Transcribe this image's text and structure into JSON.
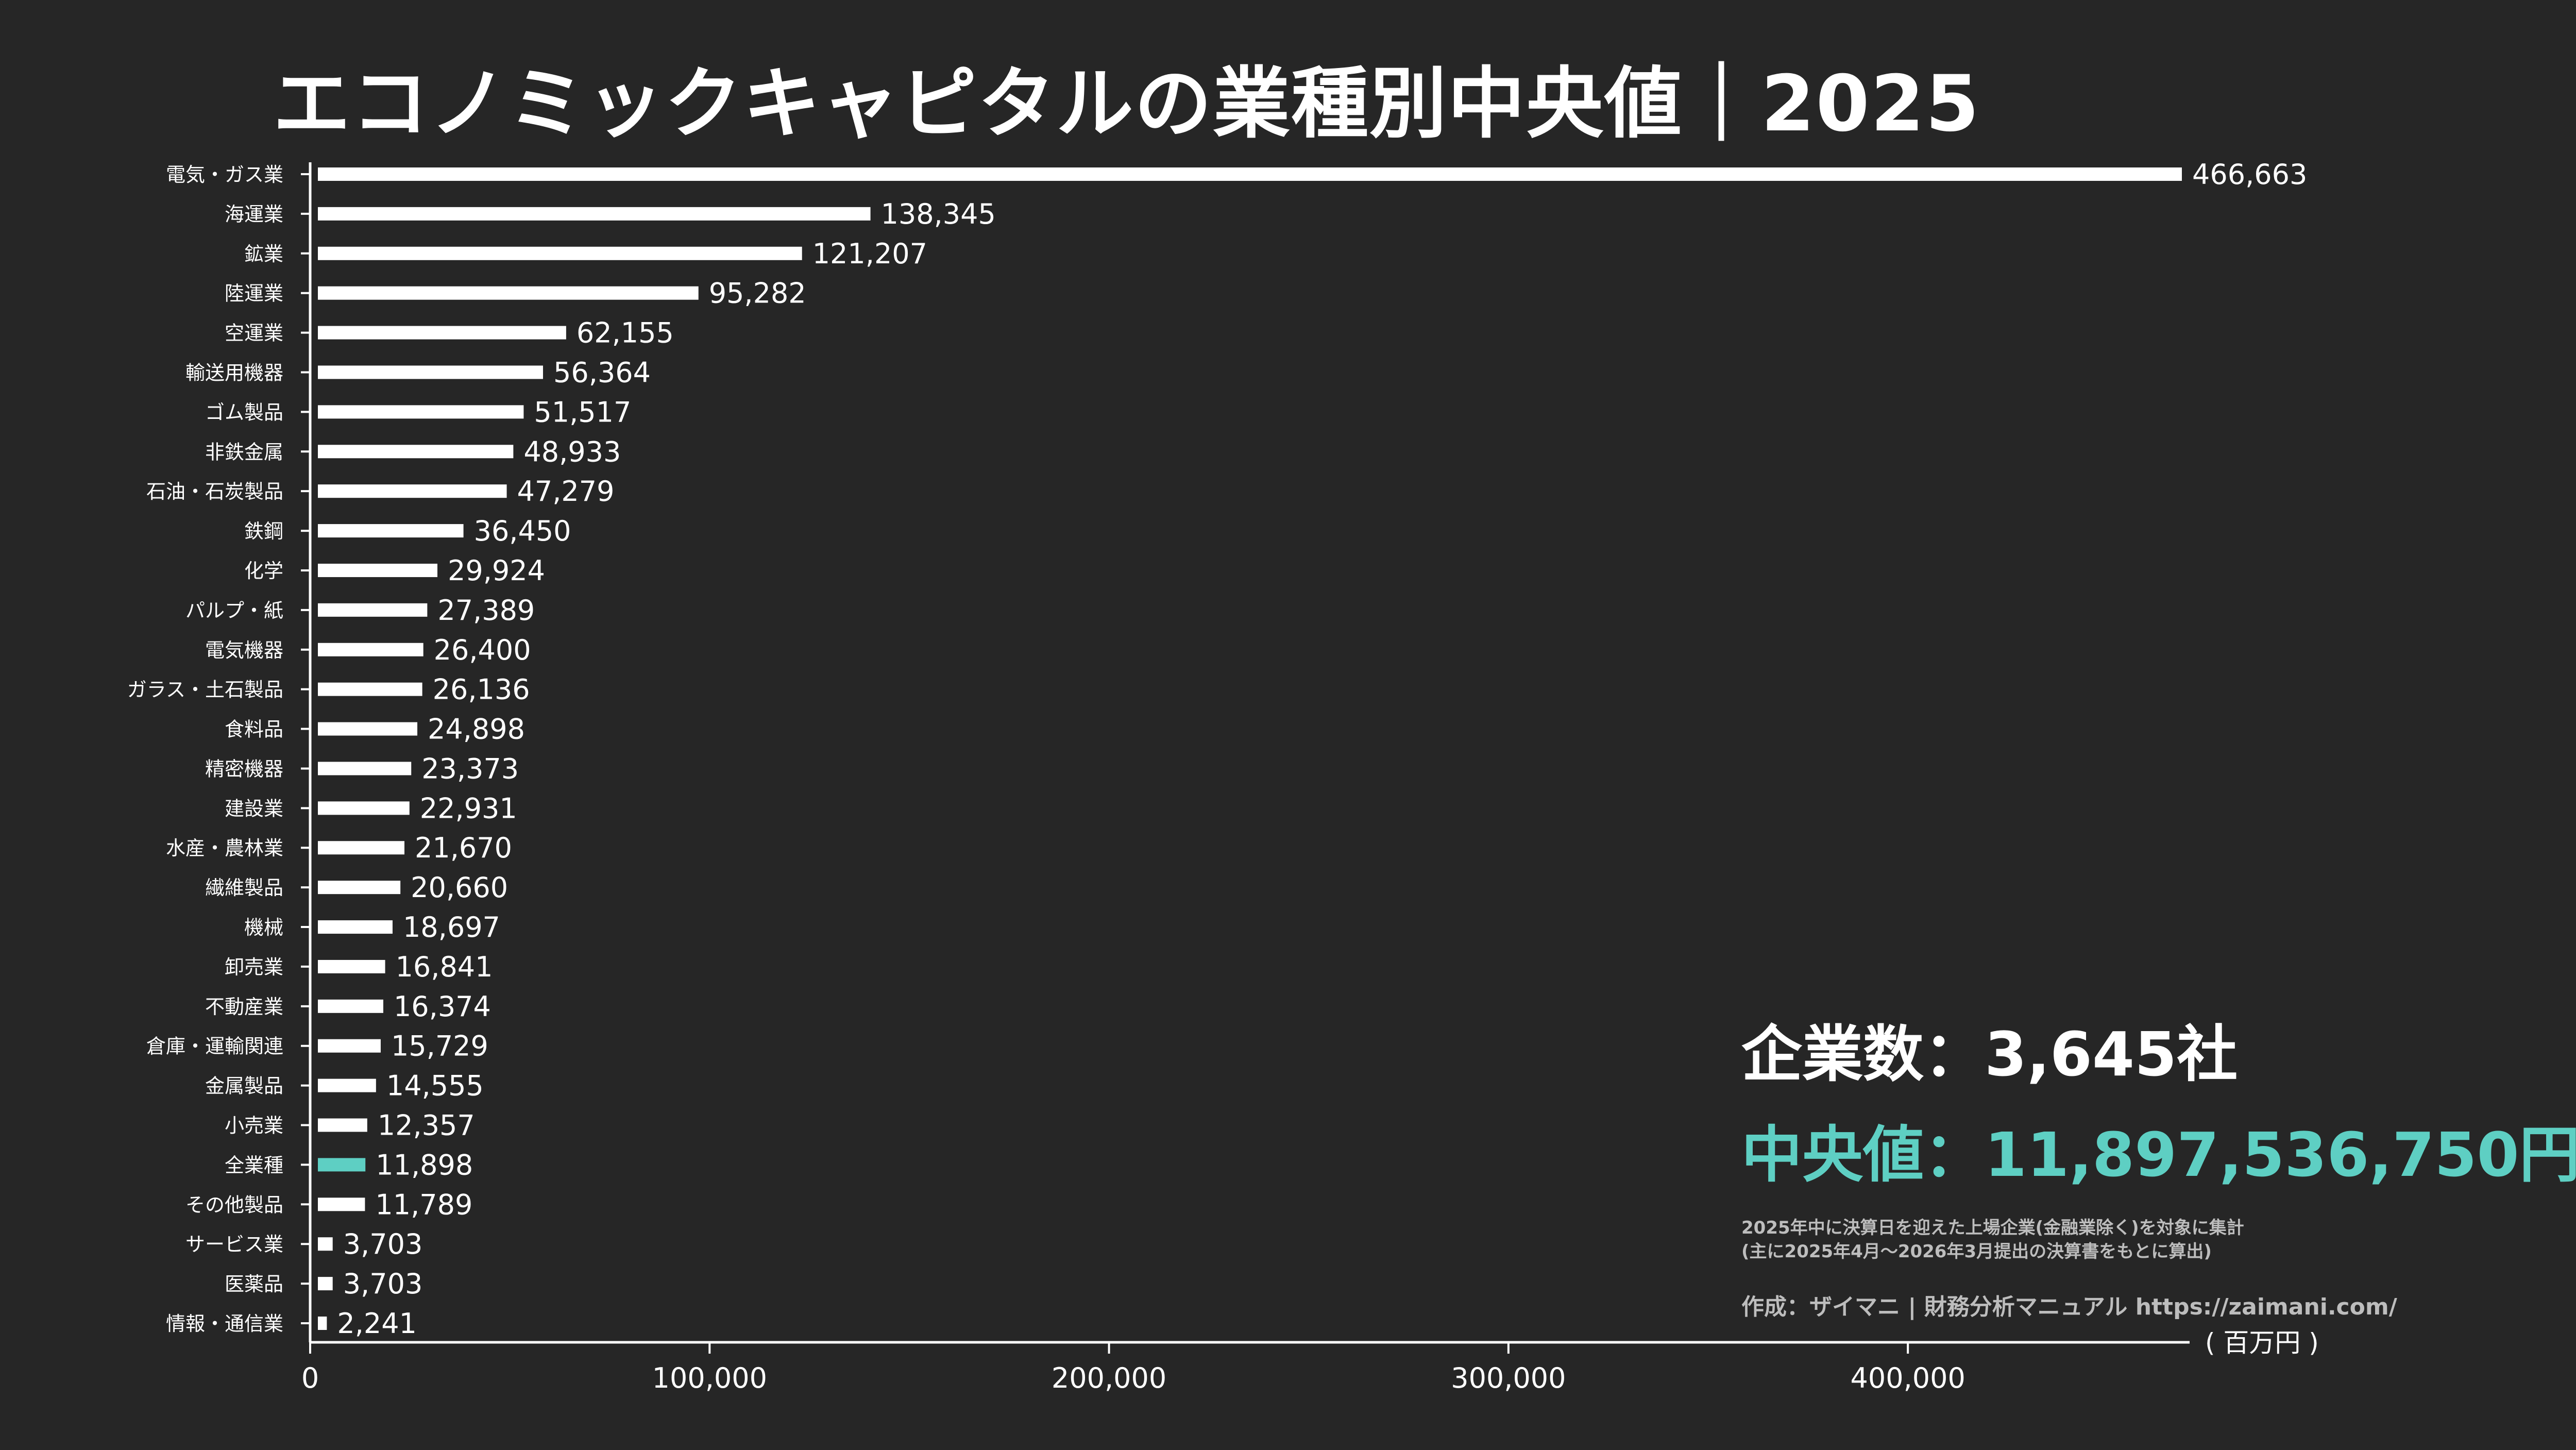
{
  "title": "エコノミックキャピタルの業種別中央値｜2025",
  "colors": {
    "background": "#262626",
    "bar": "#ffffff",
    "highlight": "#5ecfc3",
    "note": "#bdbdbd"
  },
  "chart_data": {
    "type": "bar",
    "orientation": "horizontal",
    "categories": [
      "電気・ガス業",
      "海運業",
      "鉱業",
      "陸運業",
      "空運業",
      "輸送用機器",
      "ゴム製品",
      "非鉄金属",
      "石油・石炭製品",
      "鉄鋼",
      "化学",
      "パルプ・紙",
      "電気機器",
      "ガラス・土石製品",
      "食料品",
      "精密機器",
      "建設業",
      "水産・農林業",
      "繊維製品",
      "機械",
      "卸売業",
      "不動産業",
      "倉庫・運輸関連",
      "金属製品",
      "小売業",
      "全業種",
      "その他製品",
      "サービス業",
      "医薬品",
      "情報・通信業"
    ],
    "values": [
      466663,
      138345,
      121207,
      95282,
      62155,
      56364,
      51517,
      48933,
      47279,
      36450,
      29924,
      27389,
      26400,
      26136,
      24898,
      23373,
      22931,
      21670,
      20660,
      18697,
      16841,
      16374,
      15729,
      14555,
      12357,
      11898,
      11789,
      3703,
      3703,
      2241
    ],
    "value_labels": [
      "466,663",
      "138,345",
      "121,207",
      "95,282",
      "62,155",
      "56,364",
      "51,517",
      "48,933",
      "47,279",
      "36,450",
      "29,924",
      "27,389",
      "26,400",
      "26,136",
      "24,898",
      "23,373",
      "22,931",
      "21,670",
      "20,660",
      "18,697",
      "16,841",
      "16,374",
      "15,729",
      "14,555",
      "12,357",
      "11,898",
      "11,789",
      "3,703",
      "3,703",
      "2,241"
    ],
    "highlight_category": "全業種",
    "xlim": [
      0,
      466663
    ],
    "xticks": [
      0,
      100000,
      200000,
      300000,
      400000
    ],
    "xtick_labels": [
      "0",
      "100,000",
      "200,000",
      "300,000",
      "400,000"
    ],
    "unit_label": "( 百万円 )",
    "grid": false
  },
  "summary": {
    "company_count": "企業数：3,645社",
    "median": "中央値：11,897,536,750円",
    "note_line1": "2025年中に決算日を迎えた上場企業(金融業除く)を対象に集計",
    "note_line2": "(主に2025年4月〜2026年3月提出の決算書をもとに算出)",
    "credit": "作成：ザイマニ | 財務分析マニュアル https://zaimani.com/"
  }
}
